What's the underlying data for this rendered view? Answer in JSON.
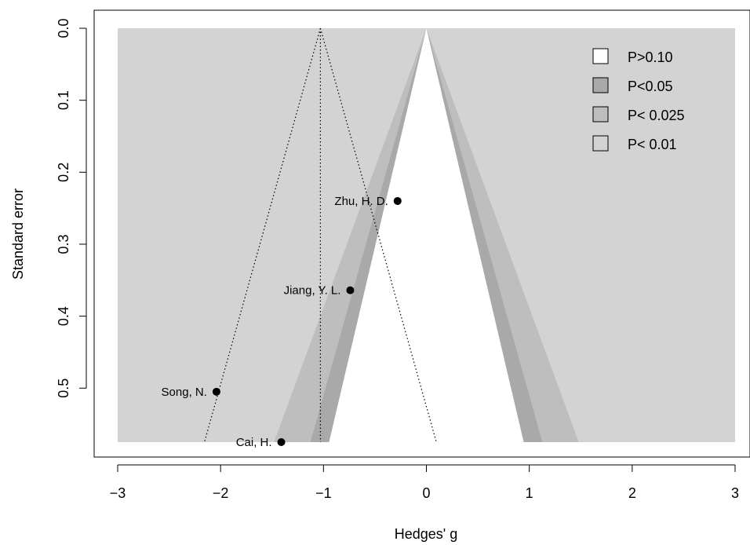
{
  "chart_data": {
    "type": "scatter",
    "title": "",
    "xlabel": "Hedges' g",
    "ylabel": "Standard error",
    "xlim": [
      -3,
      3
    ],
    "ylim": [
      0,
      0.575
    ],
    "y_reversed": true,
    "x_ticks": [
      -3,
      -2,
      -1,
      0,
      1,
      2,
      3
    ],
    "x_tick_labels": [
      "−3",
      "−2",
      "−1",
      "0",
      "1",
      "2",
      "3"
    ],
    "y_ticks": [
      0.0,
      0.1,
      0.2,
      0.3,
      0.4,
      0.5
    ],
    "y_tick_labels": [
      "0.0",
      "0.1",
      "0.2",
      "0.3",
      "0.4",
      "0.5"
    ],
    "grid": false,
    "contour_funnel": {
      "center": 0,
      "levels": [
        {
          "label": "P>0.10",
          "z": 1.645,
          "color": "#ffffff"
        },
        {
          "label": "P<0.05",
          "z": 1.96,
          "color": "#a9a9a9"
        },
        {
          "label": "P< 0.025",
          "z": 2.576,
          "color": "#bebebe"
        },
        {
          "label": "P< 0.01",
          "z": null,
          "color": "#d3d3d3"
        }
      ]
    },
    "reference_funnel": {
      "center": -1.03,
      "z": 1.96,
      "style": "dotted"
    },
    "points": [
      {
        "label": "Zhu, H. D.",
        "x": -0.28,
        "y": 0.24
      },
      {
        "label": "Jiang, Y. L.",
        "x": -0.74,
        "y": 0.364
      },
      {
        "label": "Song, N.",
        "x": -2.04,
        "y": 0.505
      },
      {
        "label": "Cai, H.",
        "x": -1.41,
        "y": 0.575
      }
    ],
    "legend": {
      "position": "top-right",
      "entries": [
        "P>0.10",
        "P<0.05",
        "P< 0.025",
        "P< 0.01"
      ]
    }
  }
}
